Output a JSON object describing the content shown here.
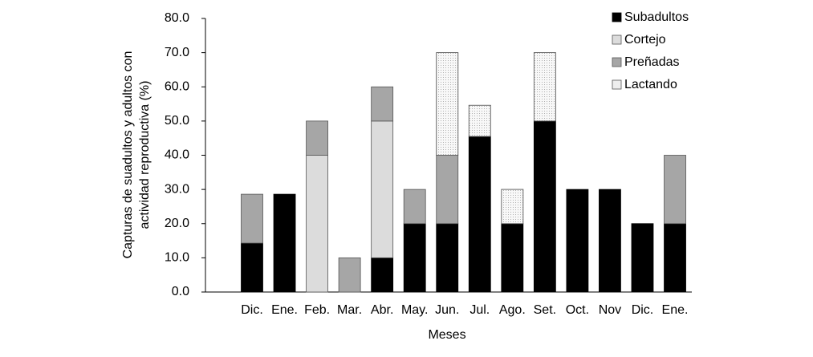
{
  "chart_data": {
    "type": "stacked_bar",
    "xlabel": "Meses",
    "ylabel": [
      "Capturas de suadultos y adultos con",
      "actividad reproductiva (%)"
    ],
    "categories": [
      "Dic.",
      "Ene.",
      "Feb.",
      "Mar.",
      "Abr.",
      "May.",
      "Jun.",
      "Jul.",
      "Ago.",
      "Set.",
      "Oct.",
      "Nov",
      "Dic.",
      "Ene."
    ],
    "series": [
      {
        "name": "Subadultos",
        "color": "#000000",
        "values": [
          14.3,
          28.6,
          null,
          null,
          10,
          20,
          20,
          45.5,
          20,
          50,
          30,
          30,
          20,
          20
        ]
      },
      {
        "name": "Cortejo",
        "color": "#dcdcdc",
        "values": [
          null,
          null,
          40,
          null,
          40,
          null,
          null,
          null,
          null,
          null,
          null,
          null,
          null,
          null
        ]
      },
      {
        "name": "Preñadas",
        "color": "#a6a6a6",
        "values": [
          14.3,
          null,
          10,
          10,
          10,
          10,
          20,
          null,
          null,
          null,
          null,
          null,
          null,
          20
        ]
      },
      {
        "name": "Lactando",
        "color": "#eeeeee",
        "values": [
          null,
          null,
          null,
          null,
          null,
          null,
          30,
          9.1,
          10,
          20,
          null,
          null,
          null,
          null
        ]
      }
    ],
    "ylim": [
      0,
      80
    ],
    "yticks": [
      {
        "value": 0,
        "label": "0.0"
      },
      {
        "value": 10,
        "label": "10.0"
      },
      {
        "value": 20,
        "label": "20.0"
      },
      {
        "value": 30,
        "label": "30.0"
      },
      {
        "value": 40,
        "label": "40.0"
      },
      {
        "value": 50,
        "label": "50.0"
      },
      {
        "value": 60,
        "label": "60.0"
      },
      {
        "value": 70,
        "label": "70.0"
      },
      {
        "value": 80,
        "label": "80.0"
      }
    ],
    "legend": "top-right"
  }
}
